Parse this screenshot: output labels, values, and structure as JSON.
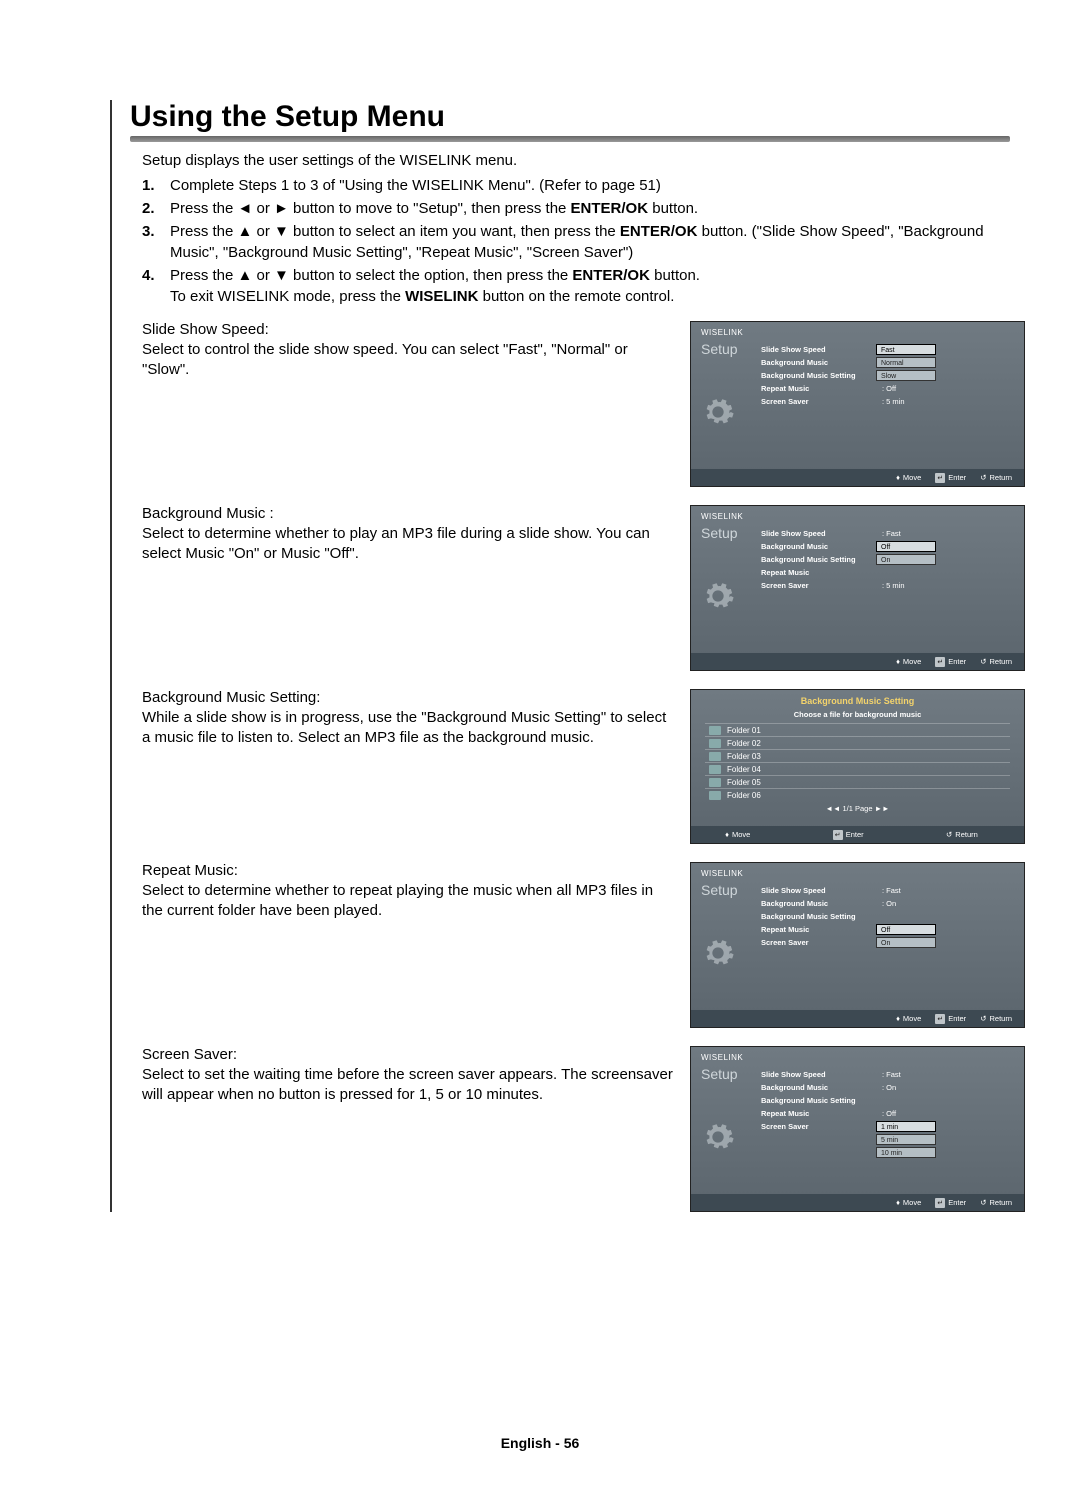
{
  "title": "Using the Setup Menu",
  "intro": "Setup displays the user settings of the WISELINK menu.",
  "steps": [
    {
      "num": "1.",
      "html": "Complete Steps 1 to 3 of \"Using the WISELINK Menu\". (Refer to page 51)"
    },
    {
      "num": "2.",
      "html": "Press the ◄ or ► button to move to \"Setup\", then press the <b>ENTER/OK</b> button."
    },
    {
      "num": "3.",
      "html": "Press the ▲ or ▼ button to select an item you want, then press the <b>ENTER/OK</b> button. (\"Slide Show Speed\", \"Background Music\", \"Background Music Setting\", \"Repeat Music\", \"Screen Saver\")"
    },
    {
      "num": "4.",
      "html": "Press the ▲ or ▼ button to select the option, then press the <b>ENTER/OK</b> button.<br>To exit WISELINK mode, press the <b>WISELINK</b> button on the remote control."
    }
  ],
  "sections": [
    {
      "title": "Slide Show Speed:",
      "body": "Select to control the slide show speed. You can select \"Fast\", \"Normal\" or \"Slow\"."
    },
    {
      "title": "Background Music :",
      "body": "Select to determine whether to play an MP3 file during a slide show. You can select Music \"On\" or Music \"Off\"."
    },
    {
      "title": "Background Music Setting:",
      "body": "While a slide show is in progress, use the \"Background Music Setting\" to select a music file to listen to. Select an MP3 file as the background music."
    },
    {
      "title": "Repeat Music:",
      "body": "Select to determine whether to repeat playing the music when all MP3 files in the current folder have been played."
    },
    {
      "title": "Screen Saver:",
      "body": "Select to set the waiting time before the screen saver appears. The screensaver will appear when no button is pressed for 1, 5 or 10 minutes."
    }
  ],
  "tv": {
    "brand": "WISELINK",
    "setup_label": "Setup",
    "footer": {
      "move": "Move",
      "enter": "Enter",
      "return": "Return"
    },
    "menu_labels": {
      "slideshow": "Slide Show Speed",
      "bgmusic": "Background Music",
      "bgmsetting": "Background Music Setting",
      "repeat": "Repeat Music",
      "screensaver": "Screen Saver"
    },
    "shot1_options": [
      "Fast",
      "Normal",
      "Slow"
    ],
    "shot1_values": {
      "repeat": ": Off",
      "screensaver": ": 5 min"
    },
    "shot2_values": {
      "slideshow": ": Fast",
      "screensaver": ": 5 min"
    },
    "shot2_options": [
      "Off",
      "On"
    ],
    "bgms_title": "Background Music Setting",
    "bgms_sub": "Choose a file for background music",
    "bgms_folders": [
      "Folder 01",
      "Folder 02",
      "Folder 03",
      "Folder 04",
      "Folder 05",
      "Folder 06"
    ],
    "bgms_pager": "◄◄ 1/1 Page ►►",
    "shot4_values": {
      "slideshow": ": Fast",
      "bgmusic": ": On"
    },
    "shot4_options": [
      "Off",
      "On"
    ],
    "shot5_values": {
      "slideshow": ": Fast",
      "bgmusic": ": On",
      "repeat": ": Off"
    },
    "shot5_options": [
      "1 min",
      "5 min",
      "10 min"
    ]
  },
  "page_footer": "English - 56"
}
